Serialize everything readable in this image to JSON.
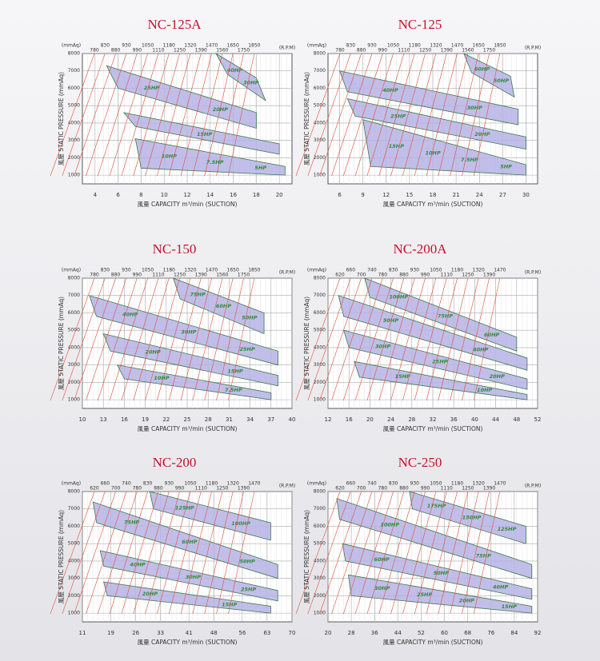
{
  "chart_data": [
    {
      "type": "fan-curve",
      "title": "NC-125A",
      "y_unit": "(mmAq)",
      "rpm_unit": "(R.P.M)",
      "ylabel": "風壓 STATIC PRESSURE (mmAq)",
      "xlabel": "風量 CAPACITY m³/min (SUCTION)",
      "rpm": [
        780,
        830,
        880,
        930,
        990,
        1050,
        1110,
        1180,
        1250,
        1320,
        1390,
        1470,
        1560,
        1650,
        1750,
        1850
      ],
      "xlim": [
        2.9,
        21.1
      ],
      "xticks": [
        4,
        6,
        8,
        10,
        12,
        14,
        16,
        18,
        20
      ],
      "ylim": [
        500,
        8000
      ],
      "yticks": [
        1000,
        2000,
        3000,
        4000,
        5000,
        6000,
        7000,
        8000
      ],
      "bands": [
        {
          "labels": [
            "40HP",
            "30HP"
          ],
          "x": [
            14.5,
            18,
            18.8,
            15.5
          ],
          "values": [
            8000,
            6600,
            5300,
            6800
          ]
        },
        {
          "labels": [
            "25HP",
            "20HP"
          ],
          "x": [
            5,
            18,
            18,
            6
          ],
          "values": [
            7300,
            4600,
            3700,
            6000
          ]
        },
        {
          "labels": [
            "15HP"
          ],
          "x": [
            6.5,
            20,
            20,
            7.5
          ],
          "values": [
            4600,
            2800,
            2200,
            3800
          ]
        },
        {
          "labels": [
            "10HP",
            "7.5HP",
            "5HP"
          ],
          "x": [
            7.5,
            20.5,
            20.5,
            8
          ],
          "values": [
            3100,
            1500,
            1000,
            1400
          ]
        }
      ]
    },
    {
      "type": "fan-curve",
      "title": "NC-125",
      "y_unit": "(mmAq)",
      "rpm_unit": "(R.P.M)",
      "ylabel": "風壓 STATIC PRESSURE (mmAq)",
      "xlabel": "風量 CAPACITY m³/min (SUCTION)",
      "rpm": [
        780,
        830,
        880,
        930,
        990,
        1050,
        1110,
        1180,
        1250,
        1320,
        1390,
        1470,
        1560,
        1650,
        1750,
        1850
      ],
      "xlim": [
        4.5,
        31.5
      ],
      "xticks": [
        6,
        9,
        12,
        15,
        18,
        21,
        24,
        27,
        30
      ],
      "ylim": [
        500,
        8000
      ],
      "yticks": [
        1000,
        2000,
        3000,
        4000,
        5000,
        6000,
        7000,
        8000
      ],
      "bands": [
        {
          "labels": [
            "60HP",
            "50HP"
          ],
          "x": [
            22,
            28,
            28.5,
            23
          ],
          "values": [
            8000,
            6700,
            5500,
            6900
          ]
        },
        {
          "labels": [
            "40HP",
            "30HP"
          ],
          "x": [
            6,
            29,
            29,
            7
          ],
          "values": [
            7000,
            4800,
            3900,
            5800
          ]
        },
        {
          "labels": [
            "25HP",
            "20HP"
          ],
          "x": [
            7,
            30,
            30,
            8
          ],
          "values": [
            5400,
            3200,
            2500,
            4400
          ]
        },
        {
          "labels": [
            "15HP",
            "10HP",
            "7.5HP",
            "5HP"
          ],
          "x": [
            9,
            30,
            30,
            10
          ],
          "values": [
            4200,
            1600,
            1000,
            1500
          ]
        }
      ]
    },
    {
      "type": "fan-curve",
      "title": "NC-150",
      "y_unit": "(mmAq)",
      "rpm_unit": "(R.P.M)",
      "ylabel": "風壓 STATIC PRESSURE (mmAq)",
      "xlabel": "風量 CAPACITY m³/min (SUCTION)",
      "rpm": [
        780,
        830,
        880,
        930,
        990,
        1050,
        1110,
        1180,
        1250,
        1320,
        1390,
        1470,
        1560,
        1650,
        1750,
        1850
      ],
      "xlim": [
        10,
        40
      ],
      "xticks": [
        10,
        13,
        16,
        19,
        22,
        25,
        28,
        31,
        34,
        37,
        40
      ],
      "ylim": [
        500,
        8000
      ],
      "yticks": [
        1000,
        2000,
        3000,
        4000,
        5000,
        6000,
        7000,
        8000
      ],
      "bands": [
        {
          "labels": [
            "75HP",
            "60HP",
            "50HP"
          ],
          "x": [
            23,
            36,
            36,
            24
          ],
          "values": [
            8000,
            6000,
            4800,
            6800
          ]
        },
        {
          "labels": [
            "40HP",
            "30HP",
            "25HP"
          ],
          "x": [
            11,
            38,
            38,
            12
          ],
          "values": [
            7000,
            3800,
            3000,
            5800
          ]
        },
        {
          "labels": [
            "20HP",
            "15HP"
          ],
          "x": [
            13,
            38,
            38,
            14
          ],
          "values": [
            4800,
            2400,
            1800,
            3800
          ]
        },
        {
          "labels": [
            "10HP",
            "7.5HP"
          ],
          "x": [
            15,
            37,
            37,
            16
          ],
          "values": [
            3000,
            1400,
            1000,
            2200
          ]
        }
      ]
    },
    {
      "type": "fan-curve",
      "title": "NC-200A",
      "y_unit": "(mmAq)",
      "rpm_unit": "(R.P.M)",
      "ylabel": "風壓 STATIC PRESSURE (mmAq)",
      "xlabel": "風量 CAPACITY m³/min (SUCTION)",
      "rpm": [
        620,
        660,
        700,
        740,
        780,
        830,
        880,
        930,
        990,
        1050,
        1110,
        1180,
        1250,
        1320,
        1390,
        1470
      ],
      "xlim": [
        12,
        52
      ],
      "xticks": [
        12,
        16,
        20,
        24,
        28,
        32,
        36,
        40,
        44,
        48,
        52
      ],
      "ylim": [
        500,
        8000
      ],
      "yticks": [
        1000,
        2000,
        3000,
        4000,
        5000,
        6000,
        7000,
        8000
      ],
      "bands": [
        {
          "labels": [
            "100HP",
            "75HP",
            "60HP"
          ],
          "x": [
            19,
            48,
            48,
            20
          ],
          "values": [
            8000,
            4600,
            3800,
            6900
          ]
        },
        {
          "labels": [
            "50HP",
            "40HP"
          ],
          "x": [
            14,
            50,
            50,
            15
          ],
          "values": [
            7000,
            3400,
            2700,
            5800
          ]
        },
        {
          "labels": [
            "30HP",
            "25HP",
            "20HP"
          ],
          "x": [
            15,
            50,
            50,
            16
          ],
          "values": [
            5000,
            2200,
            1600,
            4000
          ]
        },
        {
          "labels": [
            "15HP",
            "10HP"
          ],
          "x": [
            17,
            50,
            50,
            18
          ],
          "values": [
            3200,
            1300,
            1000,
            2300
          ]
        }
      ]
    },
    {
      "type": "fan-curve",
      "title": "NC-200",
      "y_unit": "(mmAq)",
      "rpm_unit": "(R.P.M)",
      "ylabel": "風壓 STATIC PRESSURE (mmAq)",
      "xlabel": "風量 CAPACITY m³/min (SUCTION)",
      "rpm": [
        620,
        660,
        700,
        740,
        780,
        830,
        880,
        930,
        990,
        1050,
        1110,
        1180,
        1250,
        1320,
        1390,
        1470
      ],
      "xlim": [
        11,
        70
      ],
      "xticks": [
        11,
        19,
        26,
        33,
        41,
        48,
        56,
        63,
        70
      ],
      "ylim": [
        500,
        8000
      ],
      "yticks": [
        1000,
        2000,
        3000,
        4000,
        5000,
        6000,
        7000,
        8000
      ],
      "bands": [
        {
          "labels": [
            "125HP",
            "100HP"
          ],
          "x": [
            30,
            64,
            64,
            31
          ],
          "values": [
            8000,
            6200,
            5200,
            7000
          ]
        },
        {
          "labels": [
            "75HP",
            "60HP",
            "50HP"
          ],
          "x": [
            14,
            66,
            66,
            15
          ],
          "values": [
            7400,
            3800,
            3000,
            6200
          ]
        },
        {
          "labels": [
            "40HP",
            "30HP",
            "25HP"
          ],
          "x": [
            16,
            66,
            66,
            17
          ],
          "values": [
            4600,
            2300,
            1700,
            3700
          ]
        },
        {
          "labels": [
            "20HP",
            "15HP"
          ],
          "x": [
            17,
            64,
            64,
            18
          ],
          "values": [
            2800,
            1400,
            1000,
            2000
          ]
        }
      ]
    },
    {
      "type": "fan-curve",
      "title": "NC-250",
      "y_unit": "(mmAq)",
      "rpm_unit": "(R.P.M)",
      "ylabel": "風壓 STATIC PRESSURE (mmAq)",
      "xlabel": "風量 CAPACITY m³/min (SUCTION)",
      "rpm": [
        620,
        660,
        700,
        740,
        780,
        830,
        880,
        930,
        990,
        1050,
        1110,
        1180,
        1250,
        1320,
        1390,
        1470
      ],
      "xlim": [
        20,
        92
      ],
      "xticks": [
        20,
        28,
        36,
        44,
        52,
        60,
        68,
        76,
        84,
        92
      ],
      "ylim": [
        500,
        8000
      ],
      "yticks": [
        1000,
        2000,
        3000,
        4000,
        5000,
        6000,
        7000,
        8000
      ],
      "bands": [
        {
          "labels": [
            "175HP",
            "150HP",
            "125HP"
          ],
          "x": [
            48,
            88,
            88,
            49
          ],
          "values": [
            8000,
            6000,
            5000,
            7000
          ]
        },
        {
          "labels": [
            "100HP",
            "75HP"
          ],
          "x": [
            23,
            90,
            90,
            24
          ],
          "values": [
            7600,
            3800,
            3000,
            6400
          ]
        },
        {
          "labels": [
            "60HP",
            "50HP",
            "40HP"
          ],
          "x": [
            25,
            90,
            90,
            26
          ],
          "values": [
            5000,
            2400,
            1800,
            4000
          ]
        },
        {
          "labels": [
            "30HP",
            "25HP",
            "20HP",
            "15HP"
          ],
          "x": [
            27,
            90,
            90,
            28
          ],
          "values": [
            3200,
            1400,
            1000,
            2000
          ]
        }
      ]
    }
  ]
}
